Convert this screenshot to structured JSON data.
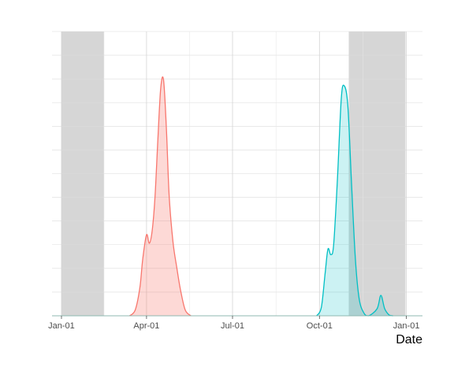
{
  "chart_data": {
    "type": "area",
    "title": "",
    "xlabel": "Date",
    "ylabel": "",
    "x_type": "date",
    "xlim": [
      "2020-12-22",
      "2022-01-18"
    ],
    "x_ticks": [
      {
        "date": "2021-01-01",
        "label": "Jan-01"
      },
      {
        "date": "2021-04-01",
        "label": "Apr-01"
      },
      {
        "date": "2021-07-01",
        "label": "Jul-01"
      },
      {
        "date": "2021-10-01",
        "label": "Oct-01"
      },
      {
        "date": "2022-01-01",
        "label": "Jan-01"
      }
    ],
    "y_tick_labels_shown": false,
    "ylim": [
      0,
      1.0
    ],
    "grid": true,
    "legend": "none",
    "shaded_periods": [
      {
        "start": "2021-01-01",
        "end": "2021-02-15",
        "color": "#d6d6d6"
      },
      {
        "start": "2021-11-01",
        "end": "2021-12-31",
        "color": "#d6d6d6"
      }
    ],
    "series": [
      {
        "line_color": "#f8766d",
        "fill_color": "#f8766d",
        "fill_opacity": 0.28,
        "points": [
          [
            "2021-03-14",
            0.0
          ],
          [
            "2021-03-20",
            0.02
          ],
          [
            "2021-03-25",
            0.1
          ],
          [
            "2021-03-28",
            0.2
          ],
          [
            "2021-04-01",
            0.285
          ],
          [
            "2021-04-04",
            0.255
          ],
          [
            "2021-04-07",
            0.3
          ],
          [
            "2021-04-10",
            0.42
          ],
          [
            "2021-04-13",
            0.62
          ],
          [
            "2021-04-16",
            0.8
          ],
          [
            "2021-04-19",
            0.83
          ],
          [
            "2021-04-22",
            0.66
          ],
          [
            "2021-04-25",
            0.42
          ],
          [
            "2021-04-29",
            0.26
          ],
          [
            "2021-05-03",
            0.17
          ],
          [
            "2021-05-07",
            0.09
          ],
          [
            "2021-05-12",
            0.02
          ],
          [
            "2021-05-18",
            0.0
          ]
        ]
      },
      {
        "line_color": "#00bfc4",
        "fill_color": "#00bfc4",
        "fill_opacity": 0.2,
        "points": [
          [
            "2021-09-28",
            0.0
          ],
          [
            "2021-10-03",
            0.03
          ],
          [
            "2021-10-07",
            0.15
          ],
          [
            "2021-10-10",
            0.235
          ],
          [
            "2021-10-13",
            0.215
          ],
          [
            "2021-10-16",
            0.25
          ],
          [
            "2021-10-20",
            0.48
          ],
          [
            "2021-10-24",
            0.76
          ],
          [
            "2021-10-27",
            0.81
          ],
          [
            "2021-10-31",
            0.74
          ],
          [
            "2021-11-04",
            0.46
          ],
          [
            "2021-11-08",
            0.2
          ],
          [
            "2021-11-12",
            0.06
          ],
          [
            "2021-11-17",
            0.01
          ],
          [
            "2021-11-22",
            0.0
          ],
          [
            "2021-12-01",
            0.025
          ],
          [
            "2021-12-05",
            0.072
          ],
          [
            "2021-12-09",
            0.025
          ],
          [
            "2021-12-14",
            0.002
          ],
          [
            "2021-12-18",
            0.0
          ]
        ]
      }
    ]
  }
}
